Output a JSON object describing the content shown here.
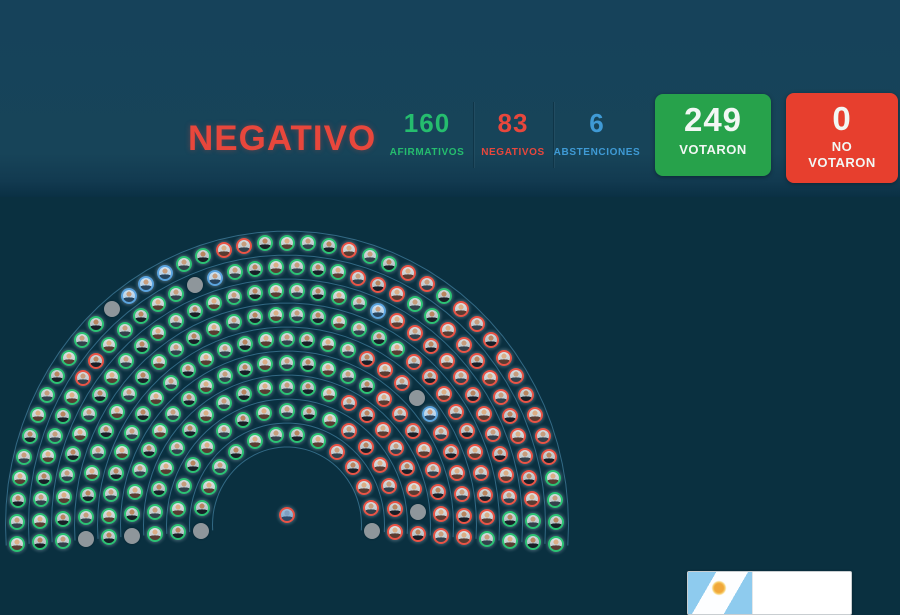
{
  "header": {
    "result_label": "NEGATIVO",
    "afirmativos": {
      "value": "160",
      "label": "AFIRMATIVOS"
    },
    "negativos": {
      "value": "83",
      "label": "NEGATIVOS"
    },
    "abstenciones": {
      "value": "6",
      "label": "ABSTENCIONES"
    },
    "votaron": {
      "value": "249",
      "label": "VOTARON"
    },
    "no_votaron": {
      "value": "0",
      "label": "NO VOTARON"
    }
  },
  "colors": {
    "afirmativo_green": "#25bd6e",
    "negativo_red": "#e8473c",
    "abstencion_blue": "#3f9ad5",
    "votaron_box_bg": "#27a24b",
    "no_votaron_box_bg": "#e73f2e",
    "header_bg": "#174459",
    "chamber_bg": "#0a3040",
    "absent_gray": "#8e969b"
  },
  "chart_data": {
    "type": "hemicycle",
    "title": "NEGATIVO",
    "totals": {
      "afirmativos": 160,
      "negativos": 83,
      "abstenciones": 6,
      "votaron": 249,
      "no_votaron": 0,
      "ausentes": 8,
      "total_seats": 257
    },
    "legend": {
      "G": "afirmativo",
      "R": "negativo",
      "B": "abstencion",
      "X": "ausente"
    },
    "seat_colors": {
      "G": "#2cc274",
      "R": "#e95446",
      "B": "#5ba4de",
      "X": "#8e969b"
    },
    "rows_inner_to_outer": [
      "XGGGGGGGGRRRRX",
      "GGGGGGGGGGGRRRRRR",
      "GGGGGGGGGGGGGRRRRRRXR",
      "XGGGGGGGGGGGGGGGGRRRRRRRR",
      "GGGGGGGGGGGGGGGGGGRRRXBRRRRRR",
      "XGGGGGGGGGGGGGGGGGGGGGRRRRRRRRRG",
      "GGGGGGGGGGGGGGGGGGGGGGBRRRRRRRRRRRGG",
      "GGGGGGGGRRGGGGGXBGGGGGGRRRGGRRRRRRRRRRGG",
      "GGGGGGGGGGGGXBBBGGRRGGGGRGGRRGRRRRRRRRRGGGG"
    ],
    "president_seat": "R"
  }
}
